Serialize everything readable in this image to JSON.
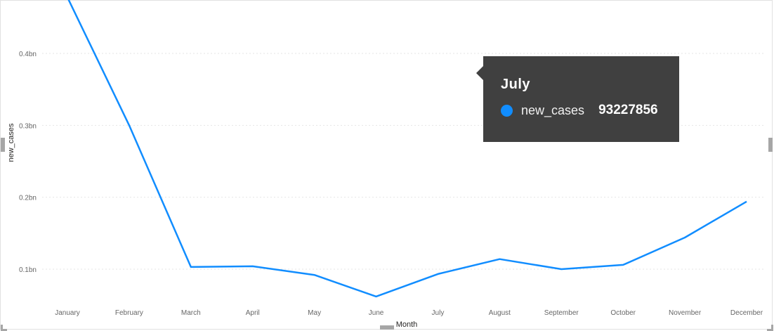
{
  "chart_data": {
    "type": "line",
    "xlabel": "Month",
    "ylabel": "new_cases",
    "categories": [
      "January",
      "February",
      "March",
      "April",
      "May",
      "June",
      "July",
      "August",
      "September",
      "October",
      "November",
      "December"
    ],
    "series": [
      {
        "name": "new_cases",
        "color": "#118DFF",
        "values": [
          478000000,
          300000000,
          103000000,
          104000000,
          92000000,
          62000000,
          93227856,
          114000000,
          100000000,
          106000000,
          144000000,
          194000000
        ]
      }
    ],
    "yticks": [
      {
        "value": 100000000,
        "label": "0.1bn"
      },
      {
        "value": 200000000,
        "label": "0.2bn"
      },
      {
        "value": 300000000,
        "label": "0.3bn"
      },
      {
        "value": 400000000,
        "label": "0.4bn"
      }
    ],
    "ylim": [
      40000000,
      470000000
    ],
    "grid": true,
    "tooltip": {
      "category": "July",
      "series": "new_cases",
      "value": "93227856"
    }
  }
}
